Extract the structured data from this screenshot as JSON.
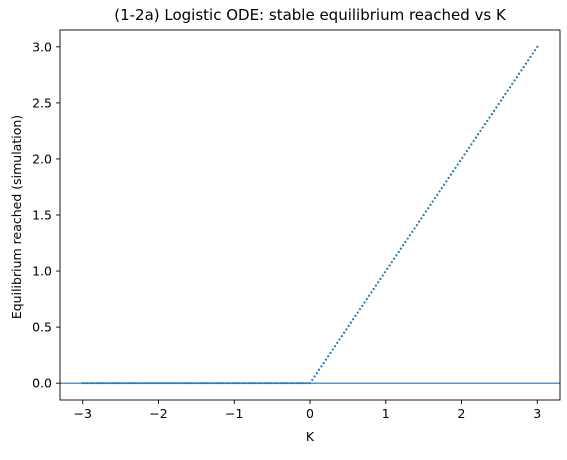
{
  "chart_data": {
    "type": "scatter",
    "title": "(1-2a) Logistic ODE: stable equilibrium reached vs K",
    "xlabel": "K",
    "ylabel": "Equilibrium reached (simulation)",
    "xlim": [
      -3.3,
      3.3
    ],
    "ylim": [
      -0.15,
      3.15
    ],
    "x_ticks": [
      -3,
      -2,
      -1,
      0,
      1,
      2,
      3
    ],
    "x_tick_labels": [
      "−3",
      "−2",
      "−1",
      "0",
      "1",
      "2",
      "3"
    ],
    "y_ticks": [
      0.0,
      0.5,
      1.0,
      1.5,
      2.0,
      2.5,
      3.0
    ],
    "y_tick_labels": [
      "0.0",
      "0.5",
      "1.0",
      "1.5",
      "2.0",
      "2.5",
      "3.0"
    ],
    "grid": false,
    "legend": "none",
    "series": [
      {
        "x_start": -3,
        "x_end": 3,
        "count": 201,
        "rule": "max(K, 0)",
        "color": "#1f77b4"
      }
    ],
    "reference_lines": [
      {
        "orientation": "horizontal",
        "y": 0,
        "color": "#1f77b4"
      }
    ]
  }
}
